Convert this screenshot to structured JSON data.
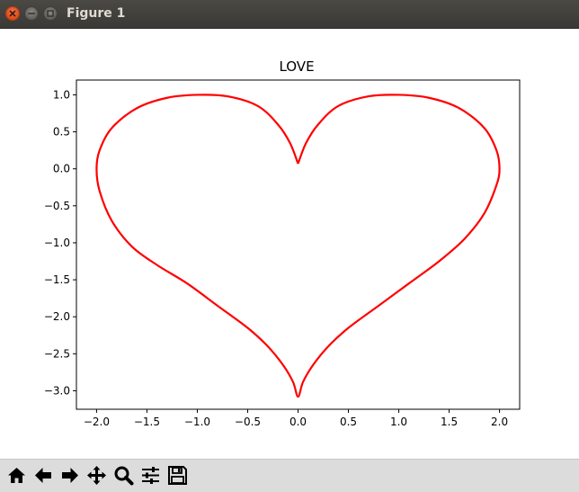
{
  "window": {
    "title": "Figure 1"
  },
  "chart_data": {
    "type": "line",
    "title": "LOVE",
    "xlabel": "",
    "ylabel": "",
    "xlim": [
      -2.2,
      2.2
    ],
    "ylim": [
      -3.25,
      1.2
    ],
    "xticks": [
      -2.0,
      -1.5,
      -1.0,
      -0.5,
      0.0,
      0.5,
      1.0,
      1.5,
      2.0
    ],
    "xtick_labels": [
      "−2.0",
      "−1.5",
      "−1.0",
      "−0.5",
      "0.0",
      "0.5",
      "1.0",
      "1.5",
      "2.0"
    ],
    "yticks": [
      1.0,
      0.5,
      0.0,
      -0.5,
      -1.0,
      -1.5,
      -2.0,
      -2.5,
      -3.0
    ],
    "ytick_labels": [
      "1.0",
      "0.5",
      "0.0",
      "−0.5",
      "−1.0",
      "−1.5",
      "−2.0",
      "−2.5",
      "−3.0"
    ],
    "grid": false,
    "series": [
      {
        "color": "#ff0000",
        "x": [
          0.0,
          0.08,
          0.2,
          0.4,
          0.7,
          1.0,
          1.3,
          1.6,
          1.85,
          1.97,
          2.0,
          1.97,
          1.85,
          1.65,
          1.4,
          1.1,
          0.8,
          0.5,
          0.3,
          0.15,
          0.05,
          0.0,
          -0.05,
          -0.15,
          -0.3,
          -0.5,
          -0.8,
          -1.1,
          -1.4,
          -1.65,
          -1.85,
          -1.97,
          -2.0,
          -1.97,
          -1.85,
          -1.6,
          -1.3,
          -1.0,
          -0.7,
          -0.4,
          -0.2,
          -0.08,
          0.0
        ],
        "y": [
          0.07,
          0.35,
          0.6,
          0.85,
          0.98,
          1.0,
          0.96,
          0.82,
          0.55,
          0.25,
          0.0,
          -0.22,
          -0.6,
          -0.95,
          -1.25,
          -1.55,
          -1.85,
          -2.15,
          -2.4,
          -2.65,
          -2.88,
          -3.08,
          -2.88,
          -2.65,
          -2.4,
          -2.15,
          -1.85,
          -1.55,
          -1.3,
          -1.05,
          -0.7,
          -0.3,
          0.0,
          0.25,
          0.55,
          0.82,
          0.96,
          1.0,
          0.98,
          0.85,
          0.6,
          0.35,
          0.07
        ]
      }
    ]
  },
  "toolbar": {
    "buttons": [
      {
        "name": "home-icon",
        "label": "Home"
      },
      {
        "name": "back-arrow-icon",
        "label": "Back"
      },
      {
        "name": "forward-arrow-icon",
        "label": "Forward"
      },
      {
        "name": "pan-icon",
        "label": "Pan"
      },
      {
        "name": "zoom-icon",
        "label": "Zoom"
      },
      {
        "name": "subplots-icon",
        "label": "Configure subplots"
      },
      {
        "name": "save-icon",
        "label": "Save"
      }
    ]
  }
}
